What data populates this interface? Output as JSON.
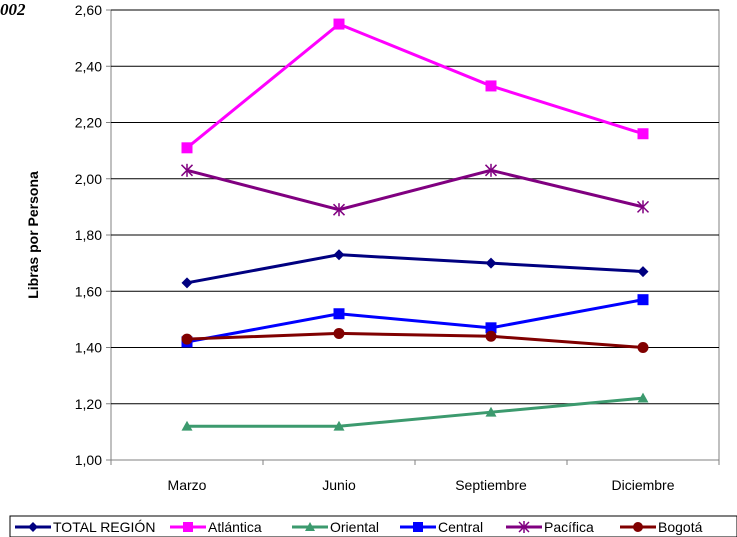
{
  "chart_data": {
    "type": "line",
    "title_fragment": "002",
    "ylabel": "Libras por Persona",
    "xlabel": "",
    "ylim": [
      1.0,
      2.6
    ],
    "yticks": [
      "1,00",
      "1,20",
      "1,40",
      "1,60",
      "1,80",
      "2,00",
      "2,20",
      "2,40",
      "2,60"
    ],
    "categories": [
      "Marzo",
      "Junio",
      "Septiembre",
      "Diciembre"
    ],
    "grid": "horizontal",
    "legend_position": "bottom",
    "series": [
      {
        "name": "TOTAL REGIÓN",
        "values": [
          1.63,
          1.73,
          1.7,
          1.67
        ],
        "color": "#000080",
        "marker": "diamond"
      },
      {
        "name": "Atlántica",
        "values": [
          2.11,
          2.55,
          2.33,
          2.16
        ],
        "color": "#ff00ff",
        "marker": "square"
      },
      {
        "name": "Oriental",
        "values": [
          1.12,
          1.12,
          1.17,
          1.22
        ],
        "color": "#3c9a6e",
        "marker": "triangle"
      },
      {
        "name": "Central",
        "values": [
          1.42,
          1.52,
          1.47,
          1.57
        ],
        "color": "#0000ff",
        "marker": "square"
      },
      {
        "name": "Pacífica",
        "values": [
          2.03,
          1.89,
          2.03,
          1.9
        ],
        "color": "#800080",
        "marker": "asterisk"
      },
      {
        "name": "Bogotá",
        "values": [
          1.43,
          1.45,
          1.44,
          1.4
        ],
        "color": "#800000",
        "marker": "circle"
      }
    ]
  }
}
